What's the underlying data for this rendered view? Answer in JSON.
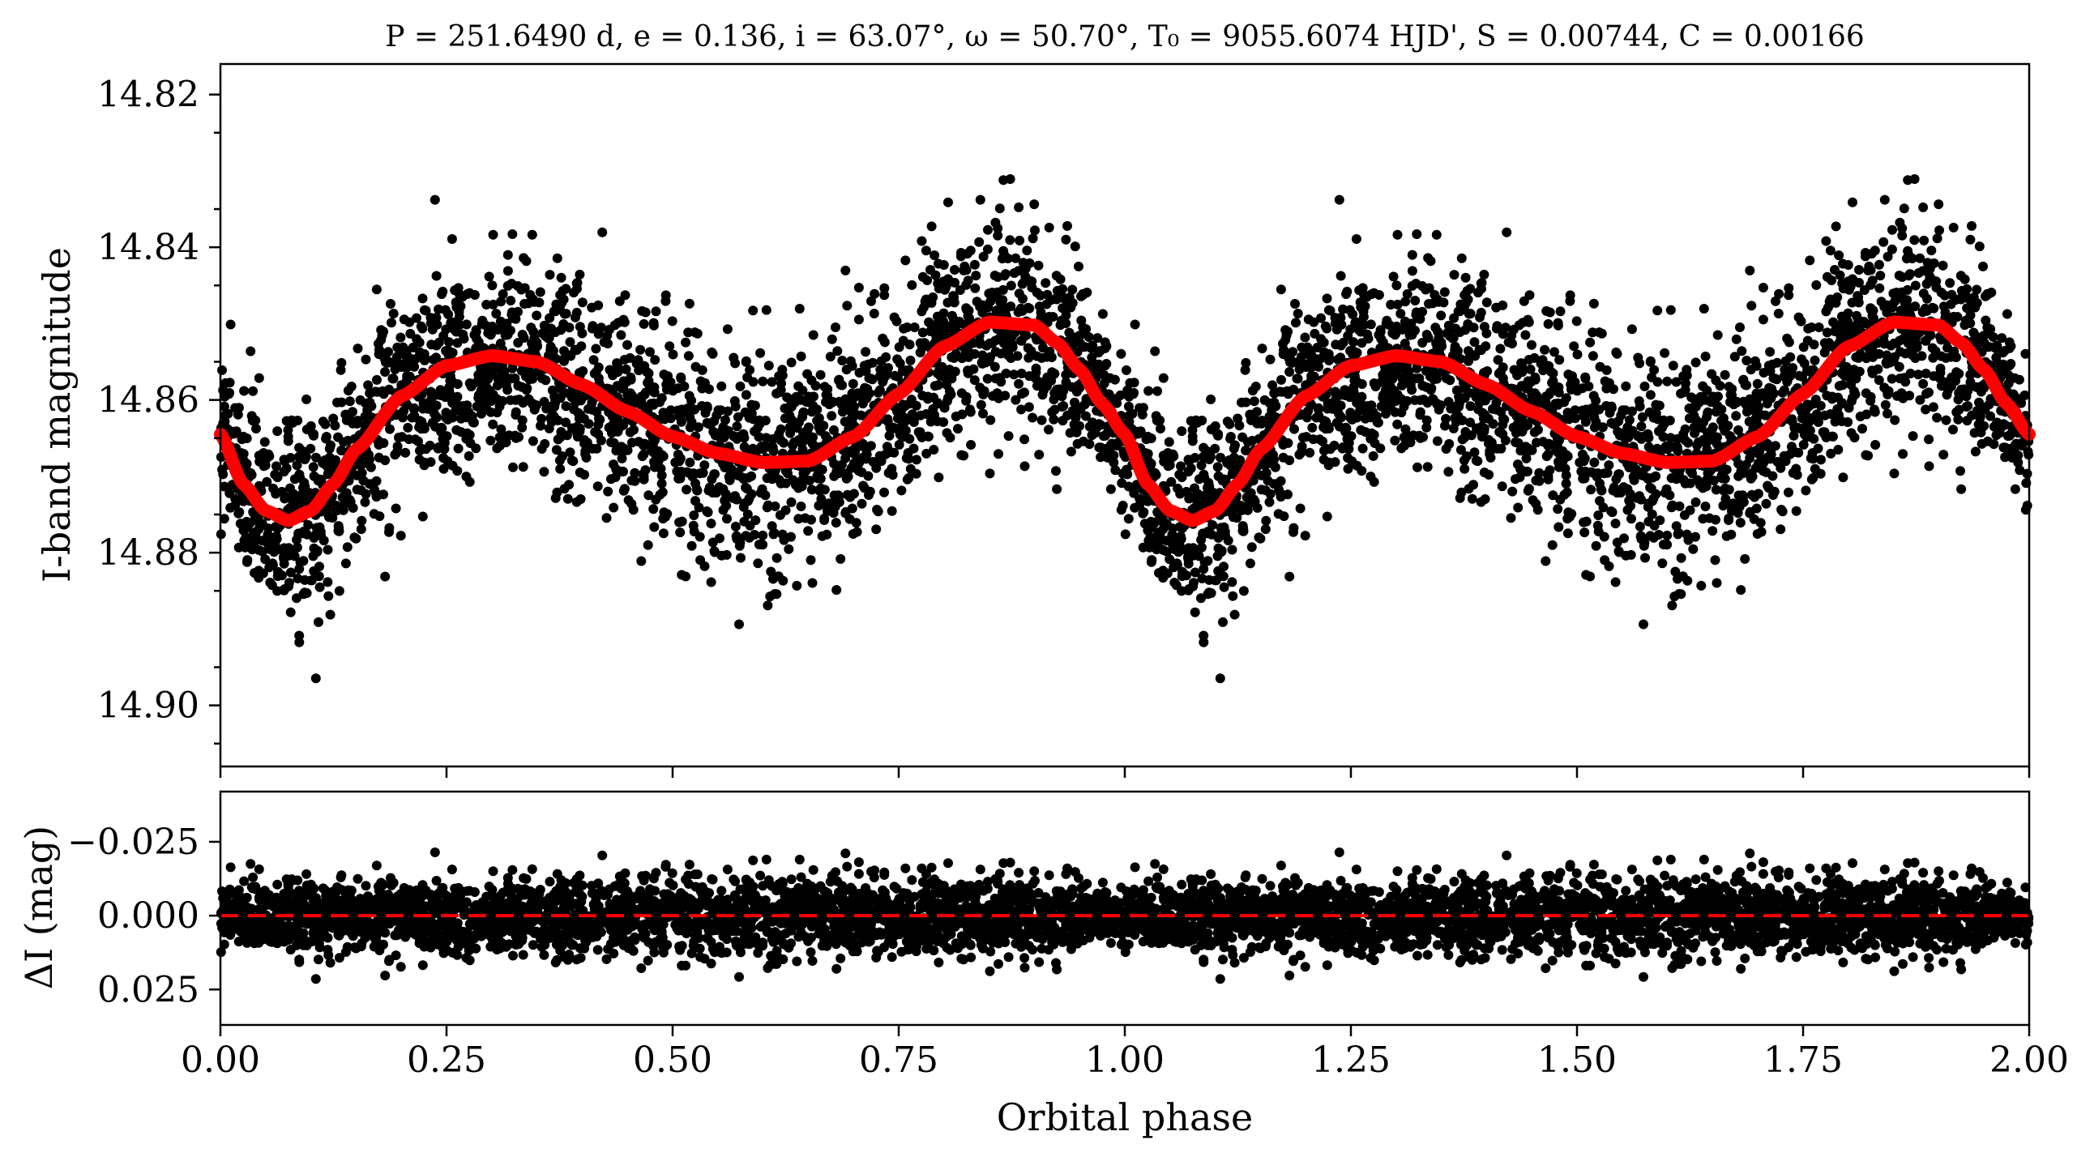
{
  "chart_data": [
    {
      "type": "scatter",
      "panel": "light-curve",
      "title": "P = 251.6490 d, e = 0.136, i = 63.07°, ω = 50.70°, T₀ = 9055.6074 HJD', S = 0.00744, C = 0.00166",
      "xlabel": "",
      "ylabel": "I-band magnitude",
      "xlim": [
        0.0,
        2.0
      ],
      "ylim": [
        14.908,
        14.816
      ],
      "y_inverted": true,
      "yticks": [
        "14.82",
        "14.84",
        "14.86",
        "14.88",
        "14.90"
      ],
      "yticks_values": [
        14.82,
        14.84,
        14.86,
        14.88,
        14.9
      ],
      "grid": false,
      "colors": {
        "points": "#000000",
        "model": "#ff0000"
      },
      "series": [
        {
          "kind": "points",
          "description_of_trend": "dense cloud following the model with scatter of about ±0.01 mag",
          "envelope_x": [
            0.0,
            0.1,
            0.2,
            0.3,
            0.4,
            0.5,
            0.6,
            0.7,
            0.8,
            0.9,
            1.0
          ],
          "envelope_y_low": [
            14.876,
            14.893,
            14.87,
            14.868,
            14.873,
            14.878,
            14.882,
            14.878,
            14.87,
            14.863,
            14.876
          ],
          "envelope_y_high": [
            14.856,
            14.862,
            14.842,
            14.84,
            14.843,
            14.848,
            14.853,
            14.85,
            14.84,
            14.833,
            14.856
          ]
        },
        {
          "kind": "model",
          "x": [
            0.0,
            0.025,
            0.05,
            0.075,
            0.1,
            0.125,
            0.15,
            0.2,
            0.25,
            0.3,
            0.35,
            0.4,
            0.45,
            0.5,
            0.55,
            0.6,
            0.65,
            0.7,
            0.75,
            0.8,
            0.85,
            0.9,
            0.925,
            0.95,
            0.975,
            1.0
          ],
          "y": [
            14.8645,
            14.871,
            14.8745,
            14.8758,
            14.8745,
            14.871,
            14.8665,
            14.8595,
            14.8555,
            14.8542,
            14.855,
            14.858,
            14.8615,
            14.8648,
            14.867,
            14.8682,
            14.868,
            14.8648,
            14.8592,
            14.853,
            14.8498,
            14.8502,
            14.8525,
            14.856,
            14.8605,
            14.8645
          ]
        }
      ]
    },
    {
      "type": "scatter",
      "panel": "residuals",
      "xlabel": "Orbital phase",
      "ylabel": "ΔI (mag)",
      "xlim": [
        0.0,
        2.0
      ],
      "ylim": [
        0.037,
        -0.042
      ],
      "y_inverted": true,
      "xticks": [
        "0.00",
        "0.25",
        "0.50",
        "0.75",
        "1.00",
        "1.25",
        "1.50",
        "1.75",
        "2.00"
      ],
      "xticks_values": [
        0.0,
        0.25,
        0.5,
        0.75,
        1.0,
        1.25,
        1.5,
        1.75,
        2.0
      ],
      "yticks": [
        "−0.025",
        "0.000",
        "0.025"
      ],
      "yticks_values": [
        -0.025,
        0.0,
        0.025
      ],
      "grid": false,
      "colors": {
        "points": "#000000",
        "zero_line": "#ff0000"
      },
      "series": [
        {
          "kind": "points",
          "description_of_trend": "residuals scattered around zero, mostly within ±0.015 mag, extremes near −0.034 and +0.028"
        },
        {
          "kind": "zero-line",
          "style": "dashed",
          "y": 0.0
        }
      ]
    }
  ]
}
